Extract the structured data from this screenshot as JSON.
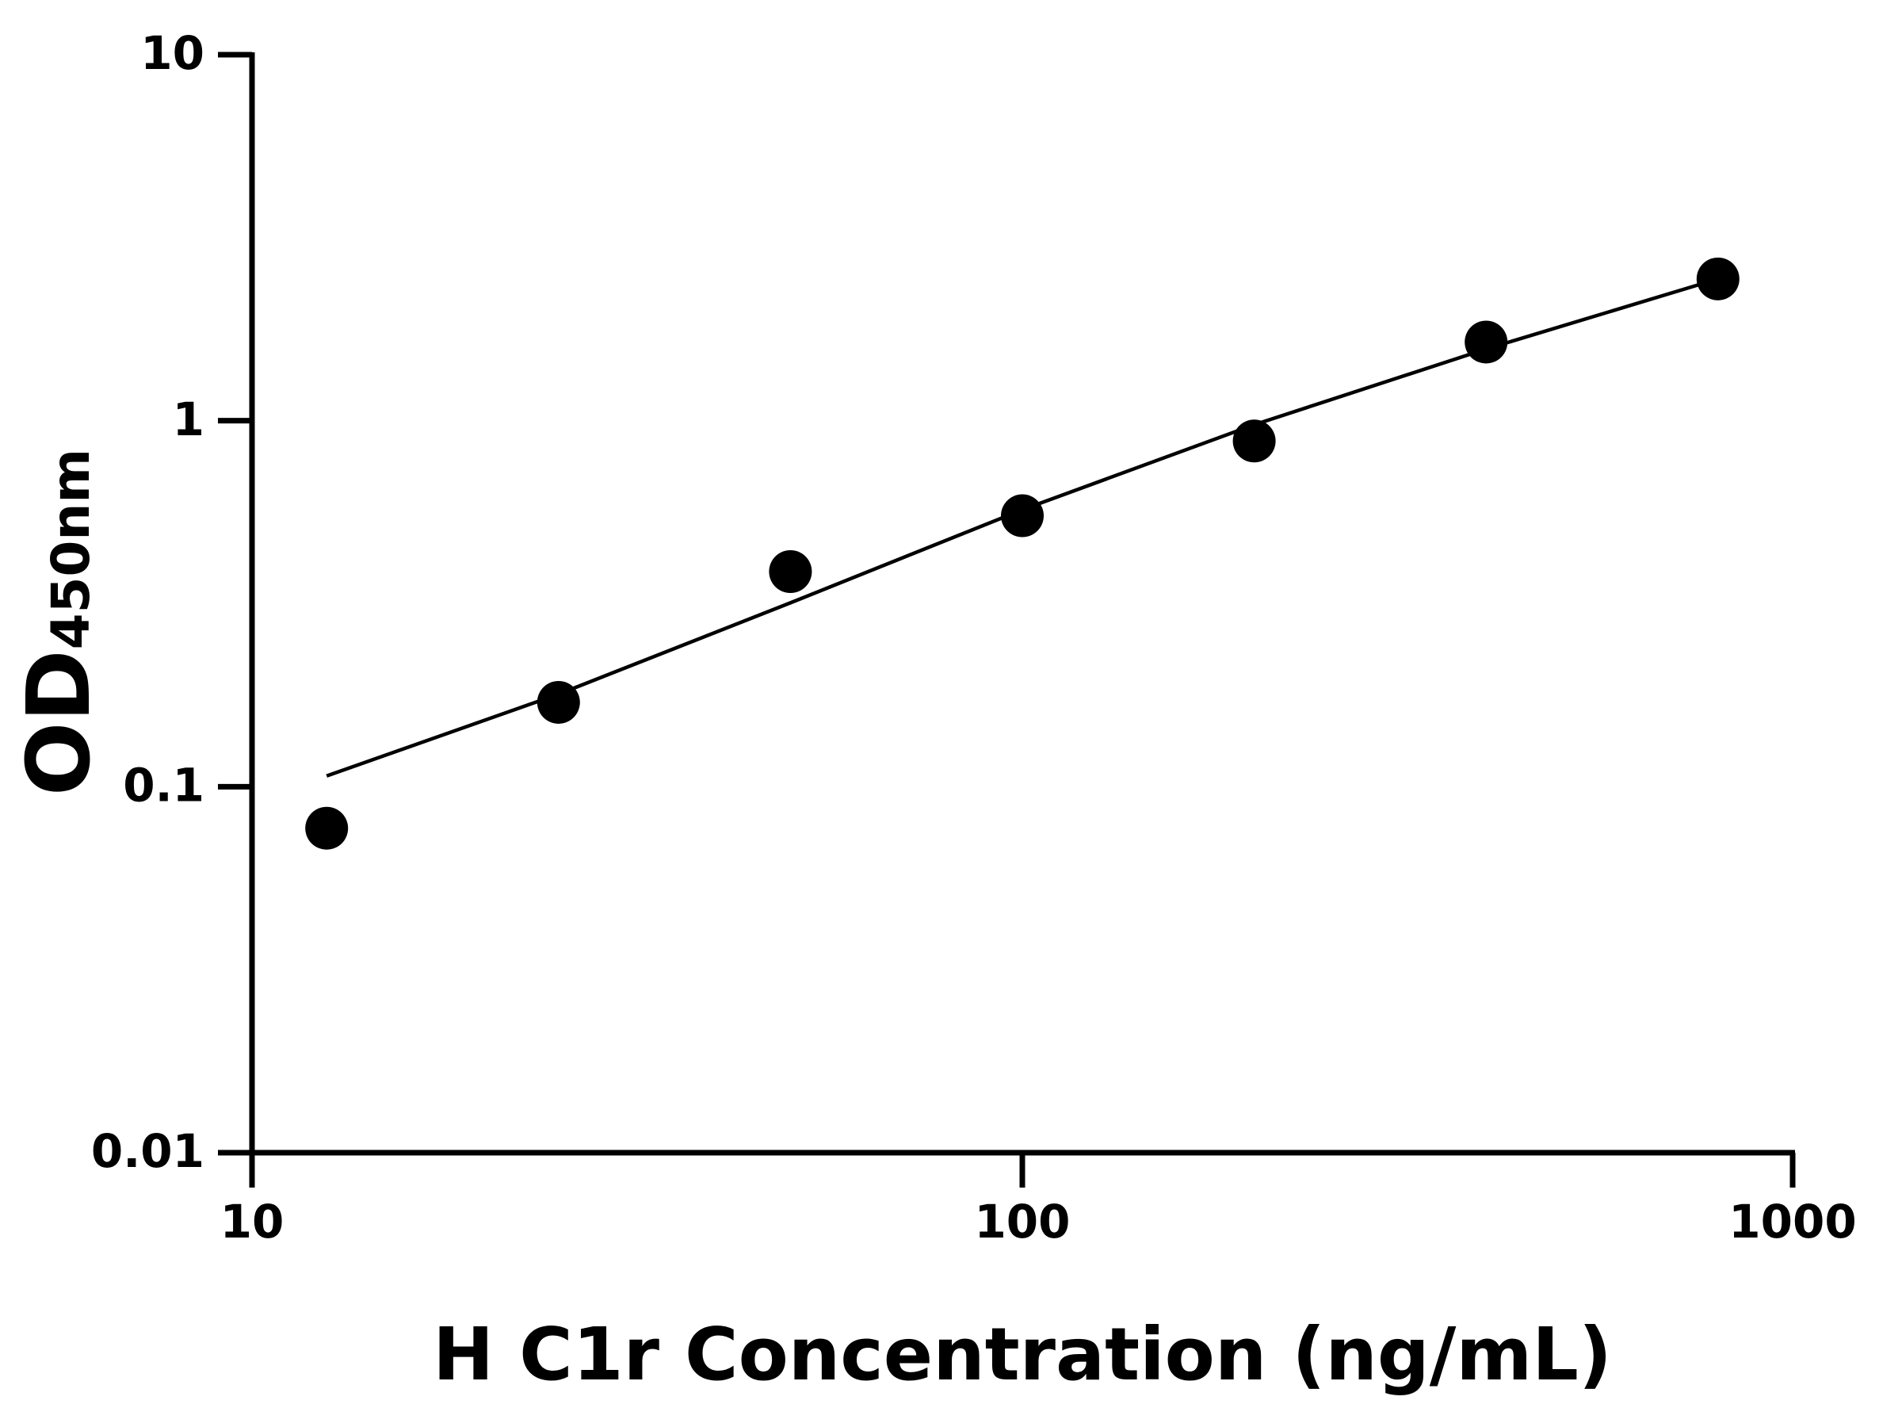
{
  "chart_data": {
    "type": "scatter",
    "xlabel": "H C1r Concentration (ng/mL)",
    "ylabel": {
      "text": "OD",
      "subscript": "450nm"
    },
    "x": [
      12.5,
      25,
      50,
      100,
      200,
      400,
      800
    ],
    "values": [
      0.077,
      0.17,
      0.387,
      0.55,
      0.88,
      1.64,
      2.44
    ],
    "color": "#000000",
    "fit_curve": {
      "x": [
        12.5,
        25,
        50,
        100,
        200,
        400,
        800
      ],
      "values": [
        0.107,
        0.179,
        0.318,
        0.571,
        0.975,
        1.57,
        2.44
      ]
    },
    "xlim": [
      10,
      1000
    ],
    "xticks": [
      10,
      100,
      1000
    ],
    "xscale": "log",
    "ylim": [
      0.01,
      10
    ],
    "yticks": [
      0.01,
      0.1,
      1,
      10
    ],
    "yscale": "log",
    "grid": false
  }
}
